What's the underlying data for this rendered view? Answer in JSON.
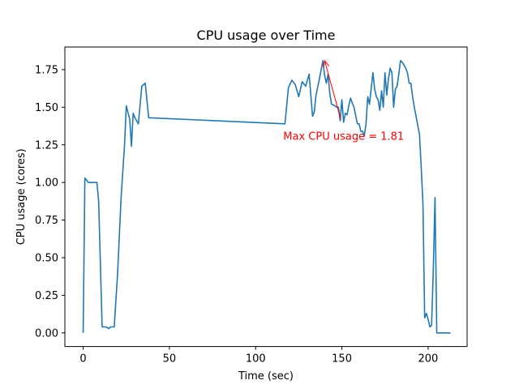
{
  "chart_data": {
    "type": "line",
    "title": "CPU usage over Time",
    "xlabel": "Time (sec)",
    "ylabel": "CPU usage (cores)",
    "xlim": [
      -10.6,
      222.6
    ],
    "ylim": [
      -0.0905,
      1.9005
    ],
    "xticks": [
      0,
      50,
      100,
      150,
      200
    ],
    "yticks": [
      0.0,
      0.25,
      0.5,
      0.75,
      1.0,
      1.25,
      1.5,
      1.75
    ],
    "xtick_labels": [
      "0",
      "50",
      "100",
      "150",
      "200"
    ],
    "ytick_labels": [
      "0.00",
      "0.25",
      "0.50",
      "0.75",
      "1.00",
      "1.25",
      "1.50",
      "1.75"
    ],
    "grid": false,
    "legend": "none",
    "series": [
      {
        "color": "#1f77b4",
        "x": [
          0,
          1,
          3,
          5,
          8,
          9,
          11,
          13,
          15,
          16,
          18,
          20,
          22,
          24,
          25,
          27,
          28,
          29,
          30,
          32,
          34,
          36,
          38,
          117,
          119,
          121,
          123,
          125,
          127,
          129,
          131,
          133,
          134,
          135,
          137,
          139,
          140,
          141,
          142,
          143,
          144,
          146,
          147,
          148,
          149,
          150,
          151,
          152,
          153,
          154,
          155,
          157,
          159,
          160,
          161,
          162,
          163,
          164,
          165,
          166,
          168,
          169,
          170,
          171,
          172,
          173,
          174,
          175,
          176,
          177,
          178,
          179,
          180,
          181,
          182,
          183,
          184,
          185,
          186,
          187,
          188,
          189,
          190,
          191,
          192,
          193,
          194,
          195,
          196,
          197,
          198,
          199,
          200,
          201,
          202,
          203,
          204,
          205,
          206,
          207,
          208,
          209,
          210,
          211,
          212,
          213
        ],
        "y": [
          0.0,
          1.03,
          1.0,
          1.0,
          1.0,
          0.87,
          0.04,
          0.04,
          0.03,
          0.04,
          0.04,
          0.4,
          0.9,
          1.25,
          1.51,
          1.42,
          1.24,
          1.46,
          1.43,
          1.39,
          1.64,
          1.66,
          1.43,
          1.39,
          1.63,
          1.68,
          1.65,
          1.57,
          1.67,
          1.64,
          1.72,
          1.44,
          1.47,
          1.58,
          1.69,
          1.81,
          1.71,
          1.66,
          1.72,
          1.59,
          1.52,
          1.51,
          1.5,
          1.5,
          1.41,
          1.55,
          1.4,
          1.46,
          1.45,
          1.51,
          1.56,
          1.5,
          1.39,
          1.39,
          1.34,
          1.34,
          1.31,
          1.39,
          1.57,
          1.52,
          1.73,
          1.62,
          1.57,
          1.55,
          1.48,
          1.61,
          1.5,
          1.73,
          1.58,
          1.69,
          1.76,
          1.73,
          1.5,
          1.62,
          1.64,
          1.72,
          1.81,
          1.8,
          1.78,
          1.76,
          1.73,
          1.66,
          1.66,
          1.57,
          1.5,
          1.44,
          1.38,
          1.32,
          1.1,
          0.86,
          0.1,
          0.13,
          0.09,
          0.04,
          0.05,
          0.42,
          0.9,
          0.0,
          0.0,
          0.0,
          0.0,
          0.0,
          0.0,
          0.0,
          0.0,
          0.0
        ]
      }
    ],
    "annotation": {
      "text": "Max CPU usage = 1.81",
      "color": "#ff0000",
      "point_x": 140,
      "point_y": 1.81,
      "text_x": 116,
      "text_y": 1.31
    }
  }
}
